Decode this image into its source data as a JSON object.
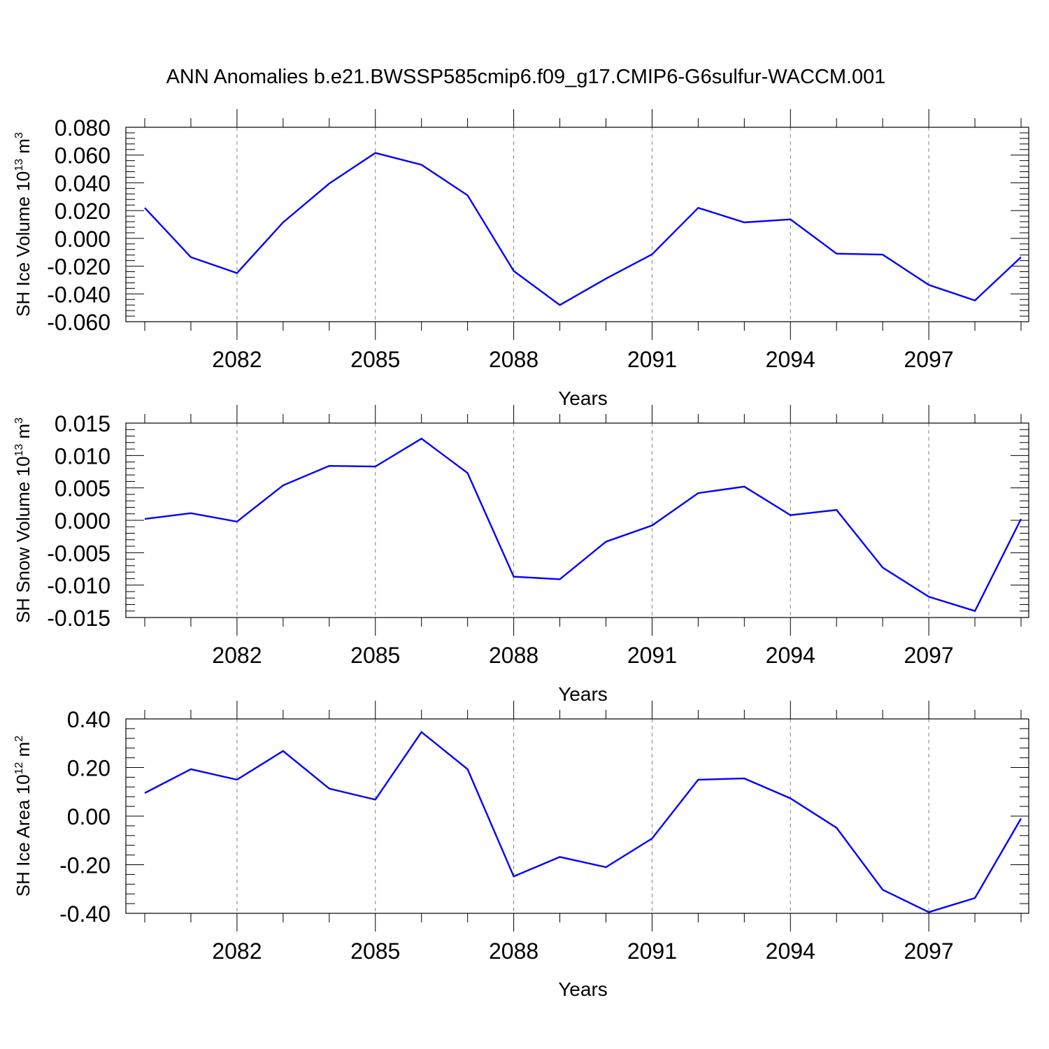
{
  "title": "ANN Anomalies b.e21.BWSSP585cmip6.f09_g17.CMIP6-G6sulfur-WACCM.001",
  "colors": {
    "line": "#0000ff",
    "axis": "#000000",
    "grid": "#808080"
  },
  "chart_data": [
    {
      "type": "line",
      "xlabel": "Years",
      "ylabel": {
        "text": "SH Ice Volume 10",
        "exp": "13",
        "unit": " m",
        "unit_exp": "3"
      },
      "xlim": [
        2080,
        2099
      ],
      "xticks": [
        2082,
        2085,
        2088,
        2091,
        2094,
        2097
      ],
      "ylim": [
        -0.06,
        0.08
      ],
      "yticks": [
        "-0.060",
        "-0.040",
        "-0.020",
        "0.000",
        "0.020",
        "0.040",
        "0.060",
        "0.080"
      ],
      "x": [
        2080,
        2081,
        2082,
        2083,
        2084,
        2085,
        2086,
        2087,
        2088,
        2089,
        2090,
        2091,
        2092,
        2093,
        2094,
        2095,
        2096,
        2097,
        2098,
        2099
      ],
      "values": [
        0.022,
        -0.0135,
        -0.025,
        0.0115,
        0.0395,
        0.0615,
        0.053,
        0.031,
        -0.0235,
        -0.048,
        -0.029,
        -0.0115,
        0.022,
        0.0115,
        0.0137,
        -0.011,
        -0.0117,
        -0.0335,
        -0.0447,
        -0.0135
      ]
    },
    {
      "type": "line",
      "xlabel": "Years",
      "ylabel": {
        "text": "SH Snow Volume 10",
        "exp": "13",
        "unit": " m",
        "unit_exp": "3"
      },
      "xlim": [
        2080,
        2099
      ],
      "xticks": [
        2082,
        2085,
        2088,
        2091,
        2094,
        2097
      ],
      "ylim": [
        -0.015,
        0.015
      ],
      "yticks": [
        "-0.015",
        "-0.010",
        "-0.005",
        "0.000",
        "0.005",
        "0.010",
        "0.015"
      ],
      "x": [
        2080,
        2081,
        2082,
        2083,
        2084,
        2085,
        2086,
        2087,
        2088,
        2089,
        2090,
        2091,
        2092,
        2093,
        2094,
        2095,
        2096,
        2097,
        2098,
        2099
      ],
      "values": [
        0.0002,
        0.0011,
        -0.0002,
        0.0054,
        0.0084,
        0.0083,
        0.0126,
        0.0073,
        -0.0087,
        -0.0091,
        -0.0033,
        -0.0008,
        0.0042,
        0.0052,
        0.0008,
        0.0016,
        -0.0073,
        -0.0118,
        -0.014,
        0.0002
      ]
    },
    {
      "type": "line",
      "xlabel": "Years",
      "ylabel": {
        "text": "SH Ice Area 10",
        "exp": "12",
        "unit": " m",
        "unit_exp": "2"
      },
      "xlim": [
        2080,
        2099
      ],
      "xticks": [
        2082,
        2085,
        2088,
        2091,
        2094,
        2097
      ],
      "ylim": [
        -0.4,
        0.4
      ],
      "yticks": [
        "-0.40",
        "-0.20",
        "0.00",
        "0.20",
        "0.40"
      ],
      "x": [
        2080,
        2081,
        2082,
        2083,
        2084,
        2085,
        2086,
        2087,
        2088,
        2089,
        2090,
        2091,
        2092,
        2093,
        2094,
        2095,
        2096,
        2097,
        2098,
        2099
      ],
      "values": [
        0.095,
        0.193,
        0.15,
        0.268,
        0.113,
        0.068,
        0.346,
        0.193,
        -0.248,
        -0.168,
        -0.21,
        -0.092,
        0.15,
        0.155,
        0.073,
        -0.048,
        -0.303,
        -0.395,
        -0.337,
        -0.01
      ]
    }
  ]
}
